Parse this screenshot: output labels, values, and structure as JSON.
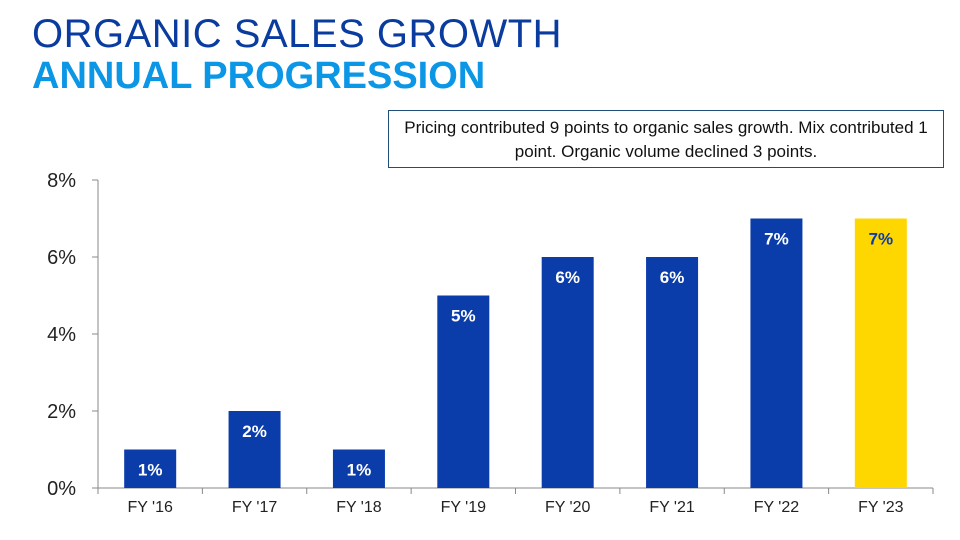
{
  "header": {
    "title": "ORGANIC SALES GROWTH",
    "subtitle": "ANNUAL PROGRESSION"
  },
  "callout": {
    "text": "Pricing contributed 9 points to organic sales growth. Mix contributed 1 point. Organic volume declined 3 points."
  },
  "chart_data": {
    "type": "bar",
    "title": "",
    "xlabel": "",
    "ylabel": "",
    "categories": [
      "FY '16",
      "FY '17",
      "FY '18",
      "FY '19",
      "FY '20",
      "FY '21",
      "FY '22",
      "FY '23"
    ],
    "values": [
      1,
      2,
      1,
      5,
      6,
      6,
      7,
      7
    ],
    "data_labels": [
      "1%",
      "2%",
      "1%",
      "5%",
      "6%",
      "6%",
      "7%",
      "7%"
    ],
    "ylim": [
      0,
      8
    ],
    "yticks": [
      0,
      2,
      4,
      6,
      8
    ],
    "ytick_labels": [
      "0%",
      "2%",
      "4%",
      "6%",
      "8%"
    ],
    "grid": false,
    "colors": {
      "default_bar": "#0A3CAA",
      "highlight_bar": "#FFD700",
      "default_label": "#FFFFFF",
      "highlight_label": "#0A3CAA"
    },
    "highlight_index": 7
  }
}
